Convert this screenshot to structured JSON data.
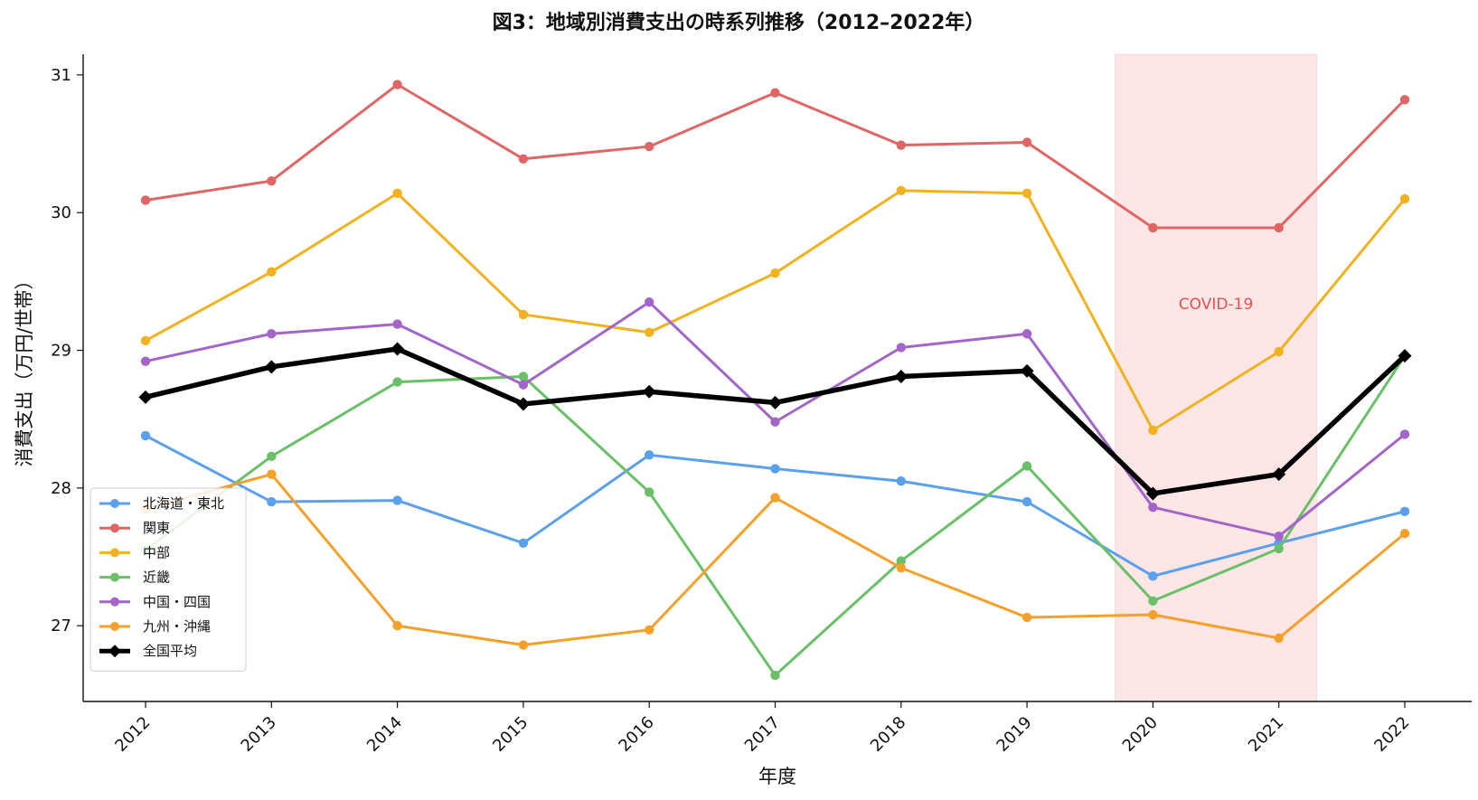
{
  "chart_data": {
    "type": "line",
    "title": "図3：地域別消費支出の時系列推移（2012–2022年）",
    "xlabel": "年度",
    "ylabel": "消費支出（万円/世帯）",
    "x": [
      "2012",
      "2013",
      "2014",
      "2015",
      "2016",
      "2017",
      "2018",
      "2019",
      "2020",
      "2021",
      "2022"
    ],
    "ylim": [
      26.45,
      31.15
    ],
    "yticks": [
      27,
      28,
      29,
      30,
      31
    ],
    "grid": false,
    "legend_position": "lower-left",
    "annotation": {
      "label": "COVID-19",
      "x_start": 2019.7,
      "x_end": 2021.3,
      "color": "#f04e4e",
      "fill": "#ffc8c8"
    },
    "series": [
      {
        "name": "北海道・東北",
        "color": "#5aa0ec",
        "marker": "circle",
        "values": [
          28.38,
          27.9,
          27.91,
          27.6,
          28.24,
          28.14,
          28.05,
          27.9,
          27.36,
          27.6,
          27.83
        ]
      },
      {
        "name": "関東",
        "color": "#e06666",
        "marker": "circle",
        "values": [
          30.09,
          30.23,
          30.93,
          30.39,
          30.48,
          30.87,
          30.49,
          30.51,
          29.89,
          29.89,
          30.82
        ]
      },
      {
        "name": "中部",
        "color": "#f2b11e",
        "marker": "circle",
        "values": [
          29.07,
          29.57,
          30.14,
          29.26,
          29.13,
          29.56,
          30.16,
          30.14,
          28.42,
          28.99,
          30.1
        ]
      },
      {
        "name": "近畿",
        "color": "#6abf69",
        "marker": "circle",
        "values": [
          27.55,
          28.23,
          28.77,
          28.81,
          27.97,
          26.64,
          27.47,
          28.16,
          27.18,
          27.56,
          28.96
        ]
      },
      {
        "name": "中国・四国",
        "color": "#a366c8",
        "marker": "circle",
        "values": [
          28.92,
          29.12,
          29.19,
          28.75,
          29.35,
          28.48,
          29.02,
          29.12,
          27.86,
          27.65,
          28.39
        ]
      },
      {
        "name": "九州・沖縄",
        "color": "#f5a02a",
        "marker": "circle",
        "values": [
          27.85,
          28.1,
          27.0,
          26.86,
          26.97,
          27.93,
          27.42,
          27.06,
          27.08,
          26.91,
          27.67
        ]
      },
      {
        "name": "全国平均",
        "color": "#000000",
        "marker": "diamond",
        "bold": true,
        "values": [
          28.66,
          28.88,
          29.01,
          28.61,
          28.7,
          28.62,
          28.81,
          28.85,
          27.96,
          28.1,
          28.96
        ]
      }
    ]
  }
}
